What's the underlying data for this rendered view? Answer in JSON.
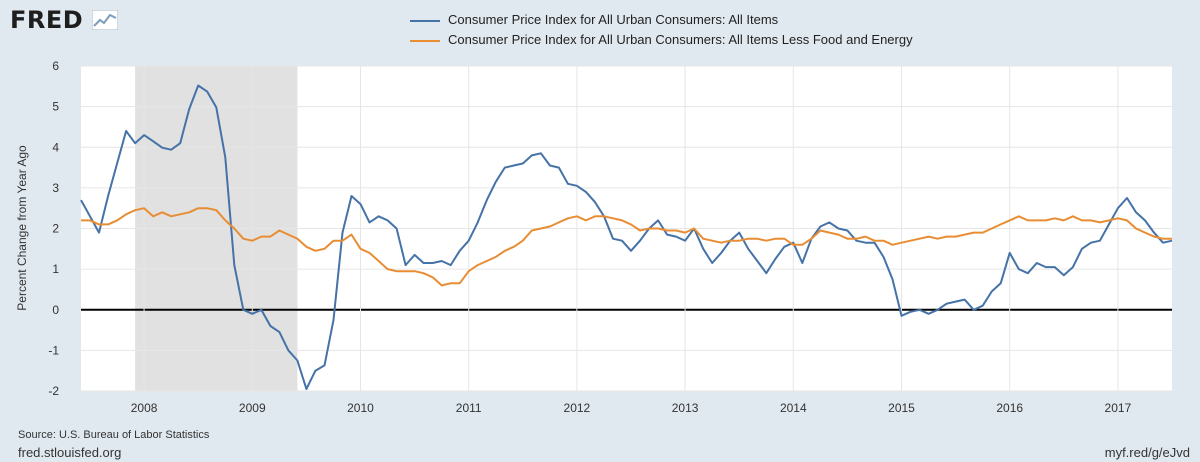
{
  "header": {
    "logo_text": "FRED"
  },
  "footer": {
    "source": "Source: U.S. Bureau of Labor Statistics",
    "site": "fred.stlouisfed.org",
    "short_url": "myf.red/g/eJvd"
  },
  "colors": {
    "background": "#e1e9f0",
    "plot_background": "#ffffff",
    "recession": "#e1e1e1",
    "series_all_items": "#4572a7",
    "series_core": "#e88d33"
  },
  "chart_data": {
    "type": "line",
    "title": "",
    "xlabel": "",
    "ylabel": "Percent Change from Year Ago",
    "xlim": [
      2007.417,
      2017.5
    ],
    "ylim": [
      -2,
      6
    ],
    "yticks": [
      -2,
      -1,
      0,
      1,
      2,
      3,
      4,
      5,
      6
    ],
    "xticks": [
      2008,
      2009,
      2010,
      2011,
      2012,
      2013,
      2014,
      2015,
      2016,
      2017
    ],
    "x_tick_labels": [
      "2008",
      "2009",
      "2010",
      "2011",
      "2012",
      "2013",
      "2014",
      "2015",
      "2016",
      "2017"
    ],
    "grid": true,
    "zero_line": true,
    "legend_position": "top",
    "recession_shading": [
      {
        "start": 2007.917,
        "end": 2009.417
      }
    ],
    "x_start": 2007.417,
    "x_step_months": 1,
    "series": [
      {
        "name": "Consumer Price Index for All Urban Consumers: All Items",
        "color": "#4572a7",
        "values": [
          2.7,
          2.3,
          1.9,
          2.8,
          3.6,
          4.4,
          4.1,
          4.3,
          4.15,
          3.99,
          3.94,
          4.1,
          4.94,
          5.52,
          5.37,
          4.98,
          3.75,
          1.1,
          0.0,
          -0.1,
          0.0,
          -0.4,
          -0.55,
          -1.0,
          -1.25,
          -1.95,
          -1.5,
          -1.37,
          -0.25,
          1.9,
          2.8,
          2.6,
          2.15,
          2.3,
          2.2,
          2.0,
          1.1,
          1.35,
          1.15,
          1.15,
          1.2,
          1.1,
          1.45,
          1.7,
          2.15,
          2.7,
          3.15,
          3.5,
          3.55,
          3.6,
          3.8,
          3.85,
          3.55,
          3.5,
          3.1,
          3.05,
          2.9,
          2.65,
          2.3,
          1.75,
          1.7,
          1.45,
          1.7,
          2.0,
          2.2,
          1.85,
          1.8,
          1.7,
          2.0,
          1.5,
          1.15,
          1.4,
          1.7,
          1.9,
          1.5,
          1.2,
          0.9,
          1.25,
          1.55,
          1.65,
          1.15,
          1.75,
          2.05,
          2.15,
          2.0,
          1.95,
          1.7,
          1.65,
          1.65,
          1.3,
          0.75,
          -0.15,
          -0.05,
          -0.0,
          -0.1,
          0.0,
          0.15,
          0.2,
          0.25,
          0.0,
          0.1,
          0.45,
          0.65,
          1.4,
          1.0,
          0.9,
          1.15,
          1.05,
          1.05,
          0.85,
          1.05,
          1.5,
          1.65,
          1.7,
          2.1,
          2.5,
          2.75,
          2.4,
          2.2,
          1.9,
          1.65,
          1.7
        ]
      },
      {
        "name": "Consumer Price Index for All Urban Consumers: All Items Less Food and Energy",
        "color": "#e88d33",
        "values": [
          2.2,
          2.2,
          2.1,
          2.1,
          2.2,
          2.35,
          2.45,
          2.5,
          2.3,
          2.4,
          2.3,
          2.35,
          2.4,
          2.5,
          2.5,
          2.45,
          2.2,
          2.0,
          1.75,
          1.7,
          1.8,
          1.8,
          1.95,
          1.85,
          1.75,
          1.55,
          1.45,
          1.5,
          1.7,
          1.7,
          1.85,
          1.5,
          1.4,
          1.2,
          1.0,
          0.95,
          0.95,
          0.95,
          0.9,
          0.8,
          0.6,
          0.65,
          0.65,
          0.95,
          1.1,
          1.2,
          1.3,
          1.45,
          1.55,
          1.7,
          1.95,
          2.0,
          2.05,
          2.15,
          2.25,
          2.3,
          2.2,
          2.3,
          2.3,
          2.25,
          2.2,
          2.1,
          1.95,
          2.0,
          2.0,
          1.95,
          1.95,
          1.9,
          2.0,
          1.75,
          1.7,
          1.65,
          1.7,
          1.7,
          1.75,
          1.75,
          1.7,
          1.75,
          1.75,
          1.6,
          1.6,
          1.75,
          1.95,
          1.9,
          1.85,
          1.75,
          1.75,
          1.8,
          1.7,
          1.7,
          1.6,
          1.65,
          1.7,
          1.75,
          1.8,
          1.75,
          1.8,
          1.8,
          1.85,
          1.9,
          1.9,
          2.0,
          2.1,
          2.2,
          2.3,
          2.2,
          2.2,
          2.2,
          2.25,
          2.2,
          2.3,
          2.2,
          2.2,
          2.15,
          2.2,
          2.25,
          2.2,
          2.0,
          1.9,
          1.8,
          1.75,
          1.75
        ]
      }
    ]
  }
}
